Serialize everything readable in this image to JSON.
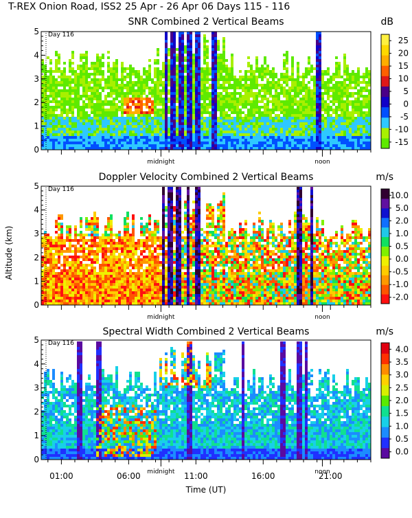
{
  "header": {
    "title": "T-REX Onion Road, ISS2  25 Apr - 26 Apr 06 Days 115 - 116"
  },
  "x_axis": {
    "label": "Time (UT)",
    "ticks": [
      "01:00",
      "06:00",
      "11:00",
      "16:00",
      "21:00"
    ],
    "tick_hours": [
      1,
      6,
      11,
      16,
      21
    ],
    "range_hours": [
      -0.5,
      24
    ],
    "markers": [
      {
        "label": "midnight",
        "hour": 8.4
      },
      {
        "label": "noon",
        "hour": 20.4
      }
    ]
  },
  "y_axis_label": "Altitude (km)",
  "chart_data": [
    {
      "type": "heatmap",
      "title": "SNR Combined 2 Vertical Beams",
      "unit": "dB",
      "day_label": "Day 116",
      "ylim": [
        0,
        5
      ],
      "yticks": [
        "0",
        "1",
        "2",
        "3",
        "4",
        "5"
      ],
      "colorbar": {
        "ticks": [
          "-15",
          "-10",
          "-5",
          "0",
          "5",
          "10",
          "15",
          "20",
          "25"
        ],
        "colors": [
          "#5eea00",
          "#a8f000",
          "#2ec8ff",
          "#0050ff",
          "#1000c8",
          "#4a0088",
          "#e01818",
          "#ff6000",
          "#ffae00",
          "#ffd800",
          "#fff040"
        ]
      },
      "profile": {
        "top_km": 3.7,
        "hot_bands": [
          [
            5.5,
            7.8,
            1.6,
            2.3
          ]
        ],
        "dark_columns": [
          8.7,
          9.2,
          9.8,
          10.4,
          11.0,
          12.3,
          19.9,
          20.1
        ]
      }
    },
    {
      "type": "heatmap",
      "title": "Doppler Velocity Combined 2 Vertical Beams",
      "unit": "m/s",
      "day_label": "Day 116",
      "ylim": [
        0,
        5
      ],
      "yticks": [
        "0",
        "1",
        "2",
        "3",
        "4",
        "5"
      ],
      "colorbar": {
        "ticks": [
          "-2.0",
          "-1.0",
          "-0.5",
          "0.0",
          "0.5",
          "1.0",
          "2.0",
          "5.0",
          "10.0"
        ],
        "colors": [
          "#ff1010",
          "#ff5500",
          "#ff9900",
          "#ffcc00",
          "#f0f000",
          "#80f000",
          "#10e060",
          "#20c8e8",
          "#1070ff",
          "#1010d0",
          "#6010a0",
          "#300030"
        ]
      },
      "profile": {
        "top_km": 3.4,
        "hot_bands": [],
        "dark_columns": [
          8.5,
          9.0,
          9.6,
          10.3,
          11.0,
          18.6,
          19.5
        ]
      }
    },
    {
      "type": "heatmap",
      "title": "Spectral Width Combined 2 Vertical Beams",
      "unit": "m/s",
      "day_label": "Day 116",
      "ylim": [
        0,
        5
      ],
      "yticks": [
        "0",
        "1",
        "2",
        "3",
        "4",
        "5"
      ],
      "colorbar": {
        "ticks": [
          "0.0",
          "0.5",
          "1.0",
          "1.5",
          "2.0",
          "2.5",
          "3.0",
          "3.5",
          "4.0"
        ],
        "colors": [
          "#5a0aa0",
          "#2030ff",
          "#1c8cff",
          "#18d0e8",
          "#10e090",
          "#5aea00",
          "#d8f000",
          "#ffd000",
          "#ff8c00",
          "#ff3000",
          "#e00010"
        ]
      },
      "profile": {
        "top_km": 3.4,
        "hot_bands": [
          [
            3.5,
            8.0,
            0.2,
            2.3
          ]
        ],
        "dark_columns": [
          2.2,
          3.7,
          10.4,
          14.4,
          17.4,
          18.6,
          19.1
        ]
      }
    }
  ]
}
